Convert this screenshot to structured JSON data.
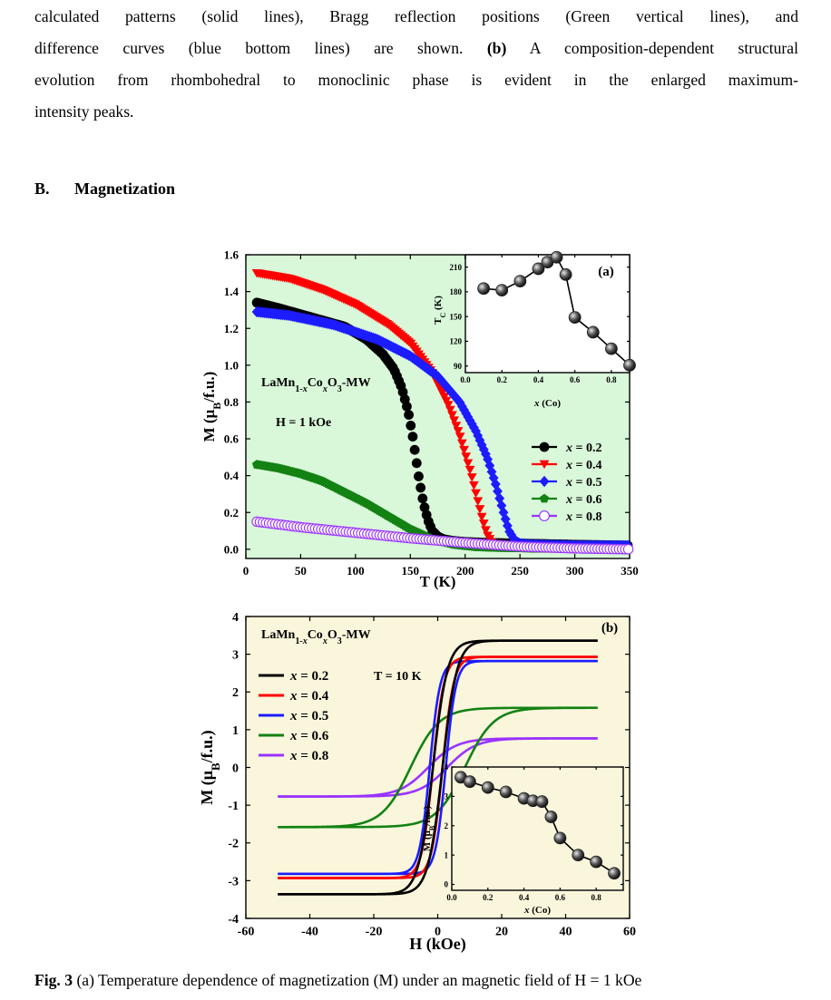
{
  "paragraph": {
    "lines": [
      "calculated patterns (solid lines), Bragg reflection positions (Green vertical lines), and",
      "difference curves (blue bottom lines) are shown.",
      "evolution from rhombohedral to monoclinic phase is evident in the enlarged maximum-",
      "intensity peaks."
    ],
    "label_b": "(b)",
    "line2_rest": " A composition-dependent structural"
  },
  "section": {
    "number": "B.",
    "title": "Magnetization"
  },
  "caption": {
    "fig_label": "Fig. 3",
    "text": "(a) Temperature dependence of magnetization (M) under an magnetic field of H = 1 kOe"
  },
  "colors": {
    "x02": "#000000",
    "x04": "#ff0000",
    "x05": "#1c1cff",
    "x06": "#138213",
    "x08": "#9933ff",
    "panel_a_bg": "#d9f7d9",
    "panel_b_bg": "#faf6dc",
    "inset_marker": "#555555"
  },
  "chart_data": [
    {
      "type": "scatter",
      "panel_label": "(a)",
      "xlabel": "T (K)",
      "ylabel": "M (μB/f.u.)",
      "xlim": [
        0,
        350
      ],
      "ylim": [
        -0.05,
        1.6
      ],
      "xticks": [
        "0",
        "50",
        "100",
        "150",
        "200",
        "250",
        "300",
        "350"
      ],
      "yticks": [
        "0.0",
        "0.2",
        "0.4",
        "0.6",
        "0.8",
        "1.0",
        "1.2",
        "1.4",
        "1.6"
      ],
      "annotation_formula": "LaMn1-xCoxO3-MW",
      "annotation_field": "H = 1 kOe",
      "series": [
        {
          "name": "x = 0.2",
          "marker": "circle",
          "x": [
            10,
            30,
            60,
            90,
            110,
            125,
            135,
            142,
            148,
            152,
            155,
            158,
            162,
            166,
            170,
            175,
            180,
            190,
            200,
            220,
            260,
            300,
            350
          ],
          "y": [
            1.34,
            1.31,
            1.26,
            1.21,
            1.14,
            1.06,
            0.98,
            0.88,
            0.75,
            0.62,
            0.5,
            0.38,
            0.25,
            0.16,
            0.1,
            0.07,
            0.055,
            0.045,
            0.04,
            0.035,
            0.03,
            0.025,
            0.02
          ]
        },
        {
          "name": "x = 0.4",
          "marker": "triangle-down",
          "x": [
            10,
            40,
            70,
            100,
            130,
            150,
            170,
            185,
            195,
            205,
            210,
            215,
            220,
            225,
            230,
            240,
            260,
            300,
            350
          ],
          "y": [
            1.5,
            1.47,
            1.41,
            1.33,
            1.22,
            1.12,
            0.96,
            0.78,
            0.62,
            0.42,
            0.3,
            0.18,
            0.08,
            0.03,
            0.015,
            0.01,
            0.005,
            0.003,
            0.0
          ]
        },
        {
          "name": "x = 0.5",
          "marker": "diamond",
          "x": [
            10,
            40,
            80,
            120,
            150,
            175,
            195,
            210,
            220,
            228,
            234,
            240,
            245,
            250,
            260,
            300,
            350
          ],
          "y": [
            1.29,
            1.27,
            1.22,
            1.14,
            1.05,
            0.94,
            0.8,
            0.64,
            0.5,
            0.35,
            0.22,
            0.1,
            0.05,
            0.03,
            0.025,
            0.02,
            0.02
          ]
        },
        {
          "name": "x = 0.6",
          "marker": "pentagon",
          "x": [
            10,
            30,
            50,
            70,
            90,
            110,
            130,
            150,
            170,
            190,
            210,
            230,
            260,
            300,
            350
          ],
          "y": [
            0.46,
            0.44,
            0.41,
            0.37,
            0.31,
            0.25,
            0.18,
            0.11,
            0.055,
            0.025,
            0.012,
            0.008,
            0.005,
            0.003,
            0.002
          ]
        },
        {
          "name": "x = 0.8",
          "marker": "open-circle",
          "x": [
            10,
            50,
            100,
            150,
            200,
            250,
            300,
            350
          ],
          "y": [
            0.15,
            0.12,
            0.09,
            0.06,
            0.035,
            0.015,
            0.005,
            0.0
          ]
        }
      ],
      "inset": {
        "type": "line",
        "xlabel": "x (Co)",
        "ylabel": "TC (K)",
        "xlim": [
          0,
          0.9
        ],
        "ylim": [
          82,
          225
        ],
        "xticks": [
          "0.0",
          "0.2",
          "0.4",
          "0.6",
          "0.8"
        ],
        "yticks": [
          "90",
          "120",
          "150",
          "180",
          "210"
        ],
        "x": [
          0.1,
          0.2,
          0.3,
          0.4,
          0.45,
          0.5,
          0.55,
          0.6,
          0.7,
          0.8,
          0.9
        ],
        "y": [
          184,
          182,
          193,
          208,
          216,
          222,
          201,
          149,
          131,
          111,
          91
        ]
      }
    },
    {
      "type": "line",
      "panel_label": "(b)",
      "xlabel": "H (kOe)",
      "ylabel": "M (μB/f.u.)",
      "xlim": [
        -60,
        60
      ],
      "ylim": [
        -4,
        4
      ],
      "xticks": [
        "-60",
        "-40",
        "-20",
        "0",
        "20",
        "40",
        "60"
      ],
      "yticks": [
        "-4",
        "-3",
        "-2",
        "-1",
        "0",
        "1",
        "2",
        "3",
        "4"
      ],
      "annotation_formula": "LaMn1-xCoxO3-MW",
      "annotation_temp": "T = 10 K",
      "series": [
        {
          "name": "x = 0.2",
          "Ms": 3.36,
          "Hc": 1.5,
          "w": 4.5,
          "tail": 0.0025
        },
        {
          "name": "x = 0.4",
          "Ms": 2.93,
          "Hc": 1.5,
          "w": 3.5,
          "tail": 0.0035
        },
        {
          "name": "x = 0.5",
          "Ms": 2.82,
          "Hc": 2.5,
          "w": 3.2,
          "tail": 0.003
        },
        {
          "name": "x = 0.6",
          "Ms": 1.58,
          "Hc": 8.5,
          "w": 9.0,
          "tail": 0.004
        },
        {
          "name": "x = 0.8",
          "Ms": 0.77,
          "Hc": 3.0,
          "w": 9.0,
          "tail": 0.0
        }
      ],
      "inset": {
        "type": "line",
        "xlabel": "x (Co)",
        "ylabel": "M (μB/f.u.)",
        "xlim": [
          0,
          0.95
        ],
        "ylim": [
          -0.2,
          4
        ],
        "xticks": [
          "0.0",
          "0.2",
          "0.4",
          "0.6",
          "0.8"
        ],
        "yticks": [
          "0",
          "1",
          "2",
          "3",
          "4"
        ],
        "x": [
          0.05,
          0.1,
          0.2,
          0.3,
          0.4,
          0.45,
          0.5,
          0.55,
          0.6,
          0.7,
          0.8,
          0.9
        ],
        "y": [
          3.65,
          3.5,
          3.3,
          3.15,
          2.93,
          2.85,
          2.82,
          2.3,
          1.58,
          1.0,
          0.77,
          0.38
        ]
      }
    }
  ]
}
